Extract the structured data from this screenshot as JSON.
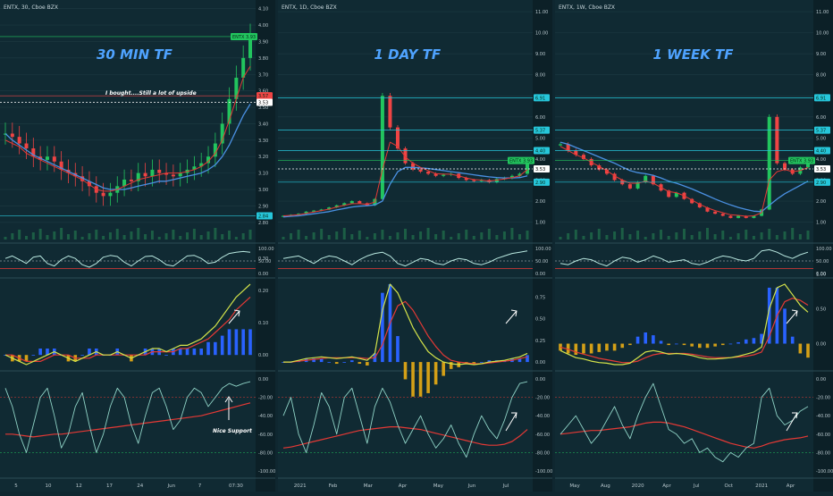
{
  "chart_data": [
    {
      "type": "line",
      "header": "ENTX, 30, Cboe BZX",
      "timeframe_label": "30 MIN TF",
      "annotations": [
        "I bought....Still a lot of upside",
        "Nice Support"
      ],
      "price_ticks": [
        "4.10",
        "4.00",
        "3.90",
        "3.80",
        "3.70",
        "3.60",
        "3.50",
        "3.40",
        "3.30",
        "3.20",
        "3.10",
        "3.00",
        "2.90",
        "2.80"
      ],
      "price_tags": [
        {
          "text": "ENTX 3.93",
          "color": "#22c55e"
        },
        {
          "text": "3.57",
          "color": "#ef4444"
        },
        {
          "text": "3.53",
          "color": "#ffffff"
        },
        {
          "text": "2.84",
          "color": "#26c6da"
        }
      ],
      "price_range": [
        2.75,
        4.12
      ],
      "price_series": [
        3.34,
        3.32,
        3.28,
        3.25,
        3.2,
        3.18,
        3.2,
        3.17,
        3.12,
        3.1,
        3.08,
        3.05,
        3.02,
        2.98,
        2.96,
        2.98,
        3.02,
        3.06,
        3.05,
        3.1,
        3.08,
        3.12,
        3.1,
        3.09,
        3.08,
        3.1,
        3.12,
        3.14,
        3.16,
        3.2,
        3.28,
        3.4,
        3.55,
        3.68,
        3.8,
        3.93
      ],
      "fast_ma": [
        3.3,
        3.28,
        3.26,
        3.22,
        3.2,
        3.18,
        3.16,
        3.14,
        3.12,
        3.1,
        3.08,
        3.06,
        3.03,
        3.0,
        2.99,
        2.99,
        3.0,
        3.02,
        3.04,
        3.06,
        3.07,
        3.08,
        3.09,
        3.1,
        3.1,
        3.1,
        3.11,
        3.12,
        3.14,
        3.17,
        3.22,
        3.3,
        3.42,
        3.55,
        3.68,
        3.75
      ],
      "slow_ma": [
        3.34,
        3.3,
        3.27,
        3.24,
        3.21,
        3.19,
        3.17,
        3.15,
        3.13,
        3.11,
        3.09,
        3.07,
        3.05,
        3.03,
        3.01,
        3.0,
        3.0,
        3.0,
        3.01,
        3.02,
        3.03,
        3.04,
        3.05,
        3.05,
        3.06,
        3.07,
        3.08,
        3.09,
        3.1,
        3.12,
        3.15,
        3.2,
        3.27,
        3.36,
        3.45,
        3.52
      ],
      "osc1_ticks": [
        "100.00",
        "50.00",
        "0.00"
      ],
      "osc1_series": [
        60,
        70,
        55,
        40,
        65,
        70,
        40,
        30,
        55,
        70,
        60,
        35,
        25,
        40,
        65,
        72,
        68,
        45,
        30,
        50,
        68,
        70,
        55,
        35,
        30,
        50,
        70,
        72,
        60,
        40,
        45,
        65,
        80,
        85,
        88,
        85
      ],
      "osc2_ticks": [
        "0.30",
        "0.20",
        "0.10",
        "0.00"
      ],
      "macd_series": [
        0.0,
        -0.01,
        -0.02,
        -0.03,
        -0.02,
        -0.01,
        0.0,
        0.01,
        0.0,
        -0.01,
        -0.02,
        -0.01,
        0.0,
        0.01,
        0.0,
        0.0,
        0.01,
        0.0,
        -0.01,
        0.0,
        0.01,
        0.02,
        0.02,
        0.01,
        0.02,
        0.03,
        0.03,
        0.04,
        0.05,
        0.07,
        0.09,
        0.12,
        0.15,
        0.18,
        0.2,
        0.22
      ],
      "signal_series": [
        0.0,
        0.0,
        -0.01,
        -0.02,
        -0.02,
        -0.02,
        -0.01,
        0.0,
        0.0,
        0.0,
        -0.01,
        -0.01,
        -0.01,
        0.0,
        0.0,
        0.0,
        0.0,
        0.0,
        0.0,
        0.0,
        0.0,
        0.01,
        0.01,
        0.01,
        0.01,
        0.02,
        0.02,
        0.03,
        0.04,
        0.05,
        0.07,
        0.09,
        0.11,
        0.14,
        0.16,
        0.18
      ],
      "osc3_ticks": [
        "0.00",
        "-20.00",
        "-40.00",
        "-60.00",
        "-80.00",
        "-100.00"
      ],
      "osc3_series": [
        -10,
        -30,
        -60,
        -80,
        -50,
        -20,
        -10,
        -40,
        -75,
        -60,
        -30,
        -15,
        -50,
        -80,
        -60,
        -30,
        -10,
        -20,
        -50,
        -70,
        -40,
        -15,
        -10,
        -30,
        -55,
        -45,
        -20,
        -10,
        -15,
        -30,
        -20,
        -10,
        -5,
        -8,
        -5,
        -3
      ],
      "osc3_ma": [
        -60,
        -60,
        -61,
        -62,
        -63,
        -62,
        -61,
        -60,
        -60,
        -59,
        -58,
        -57,
        -56,
        -55,
        -54,
        -53,
        -52,
        -51,
        -50,
        -49,
        -48,
        -47,
        -46,
        -45,
        -44,
        -43,
        -42,
        -41,
        -40,
        -38,
        -36,
        -34,
        -32,
        -30,
        -28,
        -26
      ],
      "x_ticks": [
        "5",
        "10",
        "12",
        "17",
        "24",
        "Jun",
        "7",
        "07:30"
      ]
    },
    {
      "type": "line",
      "header": "ENTX, 1D, Cboe BZX",
      "timeframe_label": "1 DAY TF",
      "price_ticks": [
        "11.00",
        "10.00",
        "9.00",
        "8.00",
        "7.00",
        "6.00",
        "5.00",
        "4.00",
        "3.00",
        "2.00",
        "1.00"
      ],
      "price_tags": [
        {
          "text": "6.91",
          "color": "#26c6da"
        },
        {
          "text": "5.37",
          "color": "#26c6da"
        },
        {
          "text": "4.40",
          "color": "#26c6da"
        },
        {
          "text": "ENTX 3.93",
          "color": "#22c55e"
        },
        {
          "text": "3.53",
          "color": "#ffffff"
        },
        {
          "text": "2.90",
          "color": "#26c6da"
        }
      ],
      "price_range": [
        0.6,
        11.3
      ],
      "price_series": [
        1.3,
        1.35,
        1.4,
        1.5,
        1.55,
        1.6,
        1.7,
        1.8,
        1.9,
        2.0,
        1.9,
        1.8,
        2.1,
        7.0,
        5.5,
        4.5,
        3.8,
        3.5,
        3.4,
        3.3,
        3.2,
        3.25,
        3.3,
        3.1,
        3.0,
        2.95,
        3.0,
        2.9,
        3.05,
        3.1,
        3.2,
        3.3,
        3.93
      ],
      "fast_ma": [
        1.3,
        1.32,
        1.35,
        1.42,
        1.48,
        1.55,
        1.62,
        1.72,
        1.8,
        1.88,
        1.88,
        1.85,
        1.95,
        3.5,
        4.8,
        4.6,
        4.1,
        3.8,
        3.6,
        3.45,
        3.3,
        3.28,
        3.28,
        3.2,
        3.1,
        3.02,
        3.0,
        2.95,
        3.0,
        3.05,
        3.12,
        3.2,
        3.5
      ],
      "slow_ma": [
        1.25,
        1.28,
        1.3,
        1.35,
        1.4,
        1.45,
        1.5,
        1.58,
        1.65,
        1.72,
        1.76,
        1.78,
        1.82,
        2.0,
        2.8,
        3.4,
        3.6,
        3.6,
        3.58,
        3.55,
        3.5,
        3.45,
        3.4,
        3.35,
        3.3,
        3.25,
        3.2,
        3.15,
        3.12,
        3.1,
        3.1,
        3.12,
        3.2
      ],
      "osc1_ticks": [
        "100.00",
        "50.00",
        "0.00"
      ],
      "osc1_series": [
        60,
        65,
        70,
        55,
        40,
        60,
        70,
        65,
        50,
        35,
        55,
        70,
        80,
        85,
        70,
        40,
        30,
        45,
        60,
        55,
        40,
        35,
        50,
        60,
        55,
        40,
        35,
        45,
        60,
        70,
        80,
        85,
        90
      ],
      "osc2_ticks": [
        "0.75",
        "0.50",
        "0.25",
        "0.00"
      ],
      "macd_series": [
        0.0,
        0.0,
        0.02,
        0.04,
        0.05,
        0.06,
        0.05,
        0.04,
        0.05,
        0.06,
        0.04,
        0.02,
        0.1,
        0.6,
        0.9,
        0.8,
        0.6,
        0.4,
        0.25,
        0.12,
        0.05,
        0.0,
        -0.02,
        -0.03,
        -0.02,
        -0.03,
        -0.02,
        0.0,
        0.01,
        0.02,
        0.04,
        0.06,
        0.1
      ],
      "signal_series": [
        0.0,
        0.0,
        0.01,
        0.02,
        0.03,
        0.04,
        0.05,
        0.05,
        0.05,
        0.05,
        0.05,
        0.04,
        0.05,
        0.2,
        0.45,
        0.65,
        0.7,
        0.6,
        0.45,
        0.3,
        0.18,
        0.08,
        0.02,
        0.0,
        -0.01,
        -0.02,
        -0.02,
        -0.01,
        0.0,
        0.01,
        0.02,
        0.04,
        0.06
      ],
      "osc3_ticks": [
        "0.00",
        "-20.00",
        "-40.00",
        "-60.00",
        "-80.00",
        "-100.00"
      ],
      "osc3_series": [
        -40,
        -20,
        -60,
        -80,
        -50,
        -15,
        -30,
        -60,
        -20,
        -10,
        -40,
        -70,
        -30,
        -10,
        -25,
        -50,
        -70,
        -55,
        -40,
        -60,
        -75,
        -65,
        -50,
        -70,
        -85,
        -60,
        -40,
        -55,
        -65,
        -45,
        -20,
        -5,
        -3
      ],
      "osc3_ma": [
        -75,
        -74,
        -72,
        -70,
        -68,
        -66,
        -64,
        -62,
        -60,
        -58,
        -56,
        -55,
        -54,
        -53,
        -52,
        -52,
        -53,
        -54,
        -55,
        -57,
        -59,
        -61,
        -63,
        -65,
        -67,
        -69,
        -71,
        -72,
        -72,
        -71,
        -68,
        -62,
        -55
      ],
      "x_ticks": [
        "2021",
        "Feb",
        "Mar",
        "Apr",
        "May",
        "Jun",
        "Jul"
      ]
    },
    {
      "type": "line",
      "header": "ENTX, 1W, Cboe BZX",
      "timeframe_label": "1 WEEK TF",
      "price_ticks": [
        "11.00",
        "10.00",
        "9.00",
        "8.00",
        "7.00",
        "6.00",
        "5.00",
        "4.00",
        "3.00",
        "2.00",
        "1.00"
      ],
      "price_tags": [
        {
          "text": "6.91",
          "color": "#26c6da"
        },
        {
          "text": "5.37",
          "color": "#26c6da"
        },
        {
          "text": "4.40",
          "color": "#26c6da"
        },
        {
          "text": "ENTX 3.93",
          "color": "#22c55e"
        },
        {
          "text": "3.53",
          "color": "#ffffff"
        },
        {
          "text": "2.90",
          "color": "#26c6da"
        }
      ],
      "price_range": [
        0.6,
        11.3
      ],
      "price_series": [
        4.7,
        4.4,
        4.2,
        4.0,
        3.7,
        3.5,
        3.3,
        3.0,
        2.8,
        2.6,
        2.9,
        3.2,
        2.8,
        2.5,
        2.2,
        2.4,
        2.1,
        1.9,
        1.7,
        1.5,
        1.4,
        1.3,
        1.2,
        1.3,
        1.2,
        1.3,
        1.6,
        6.0,
        3.8,
        3.5,
        3.3,
        3.6,
        3.93
      ],
      "fast_ma": [
        4.6,
        4.4,
        4.2,
        4.05,
        3.85,
        3.65,
        3.45,
        3.2,
        3.0,
        2.85,
        2.85,
        2.95,
        2.85,
        2.65,
        2.45,
        2.4,
        2.25,
        2.05,
        1.85,
        1.68,
        1.55,
        1.45,
        1.35,
        1.32,
        1.28,
        1.3,
        1.45,
        3.0,
        3.4,
        3.5,
        3.4,
        3.45,
        3.6
      ],
      "slow_ma": [
        4.8,
        4.7,
        4.55,
        4.4,
        4.25,
        4.1,
        3.95,
        3.8,
        3.62,
        3.45,
        3.35,
        3.3,
        3.22,
        3.1,
        2.95,
        2.85,
        2.72,
        2.58,
        2.42,
        2.26,
        2.1,
        1.95,
        1.82,
        1.7,
        1.6,
        1.52,
        1.5,
        1.8,
        2.1,
        2.35,
        2.55,
        2.75,
        2.95
      ],
      "osc1_ticks": [
        "100.00",
        "50.00",
        "0.00"
      ],
      "osc1_series": [
        40,
        35,
        50,
        60,
        55,
        40,
        30,
        50,
        65,
        60,
        45,
        55,
        70,
        60,
        45,
        50,
        55,
        40,
        35,
        45,
        60,
        70,
        65,
        55,
        50,
        60,
        90,
        95,
        85,
        70,
        60,
        75,
        85
      ],
      "osc2_ticks": [
        "1.00",
        "0.50",
        "0.00"
      ],
      "macd_series": [
        -0.1,
        -0.15,
        -0.2,
        -0.22,
        -0.25,
        -0.27,
        -0.28,
        -0.3,
        -0.3,
        -0.28,
        -0.2,
        -0.12,
        -0.1,
        -0.12,
        -0.15,
        -0.14,
        -0.15,
        -0.17,
        -0.2,
        -0.22,
        -0.22,
        -0.21,
        -0.2,
        -0.18,
        -0.15,
        -0.12,
        -0.05,
        0.5,
        0.8,
        0.85,
        0.7,
        0.55,
        0.45
      ],
      "signal_series": [
        -0.05,
        -0.08,
        -0.12,
        -0.15,
        -0.18,
        -0.21,
        -0.23,
        -0.25,
        -0.27,
        -0.27,
        -0.25,
        -0.2,
        -0.16,
        -0.14,
        -0.14,
        -0.14,
        -0.14,
        -0.15,
        -0.17,
        -0.19,
        -0.2,
        -0.2,
        -0.2,
        -0.19,
        -0.18,
        -0.16,
        -0.12,
        0.1,
        0.4,
        0.6,
        0.65,
        0.62,
        0.55
      ],
      "osc3_ticks": [
        "0.00",
        "-20.00",
        "-40.00",
        "-60.00",
        "-80.00",
        "-100.00"
      ],
      "osc3_series": [
        -60,
        -50,
        -40,
        -55,
        -70,
        -60,
        -45,
        -30,
        -50,
        -65,
        -40,
        -20,
        -5,
        -30,
        -55,
        -60,
        -70,
        -65,
        -80,
        -75,
        -85,
        -90,
        -80,
        -85,
        -75,
        -70,
        -20,
        -10,
        -40,
        -50,
        -45,
        -35,
        -30
      ],
      "osc3_ma": [
        -60,
        -59,
        -58,
        -57,
        -56,
        -56,
        -55,
        -54,
        -53,
        -52,
        -50,
        -48,
        -47,
        -47,
        -48,
        -50,
        -52,
        -55,
        -58,
        -61,
        -64,
        -67,
        -70,
        -72,
        -74,
        -75,
        -73,
        -70,
        -68,
        -66,
        -65,
        -64,
        -62
      ],
      "x_ticks": [
        "May",
        "Aug",
        "2020",
        "Apr",
        "Jul",
        "Oct",
        "2021",
        "Apr"
      ]
    }
  ]
}
